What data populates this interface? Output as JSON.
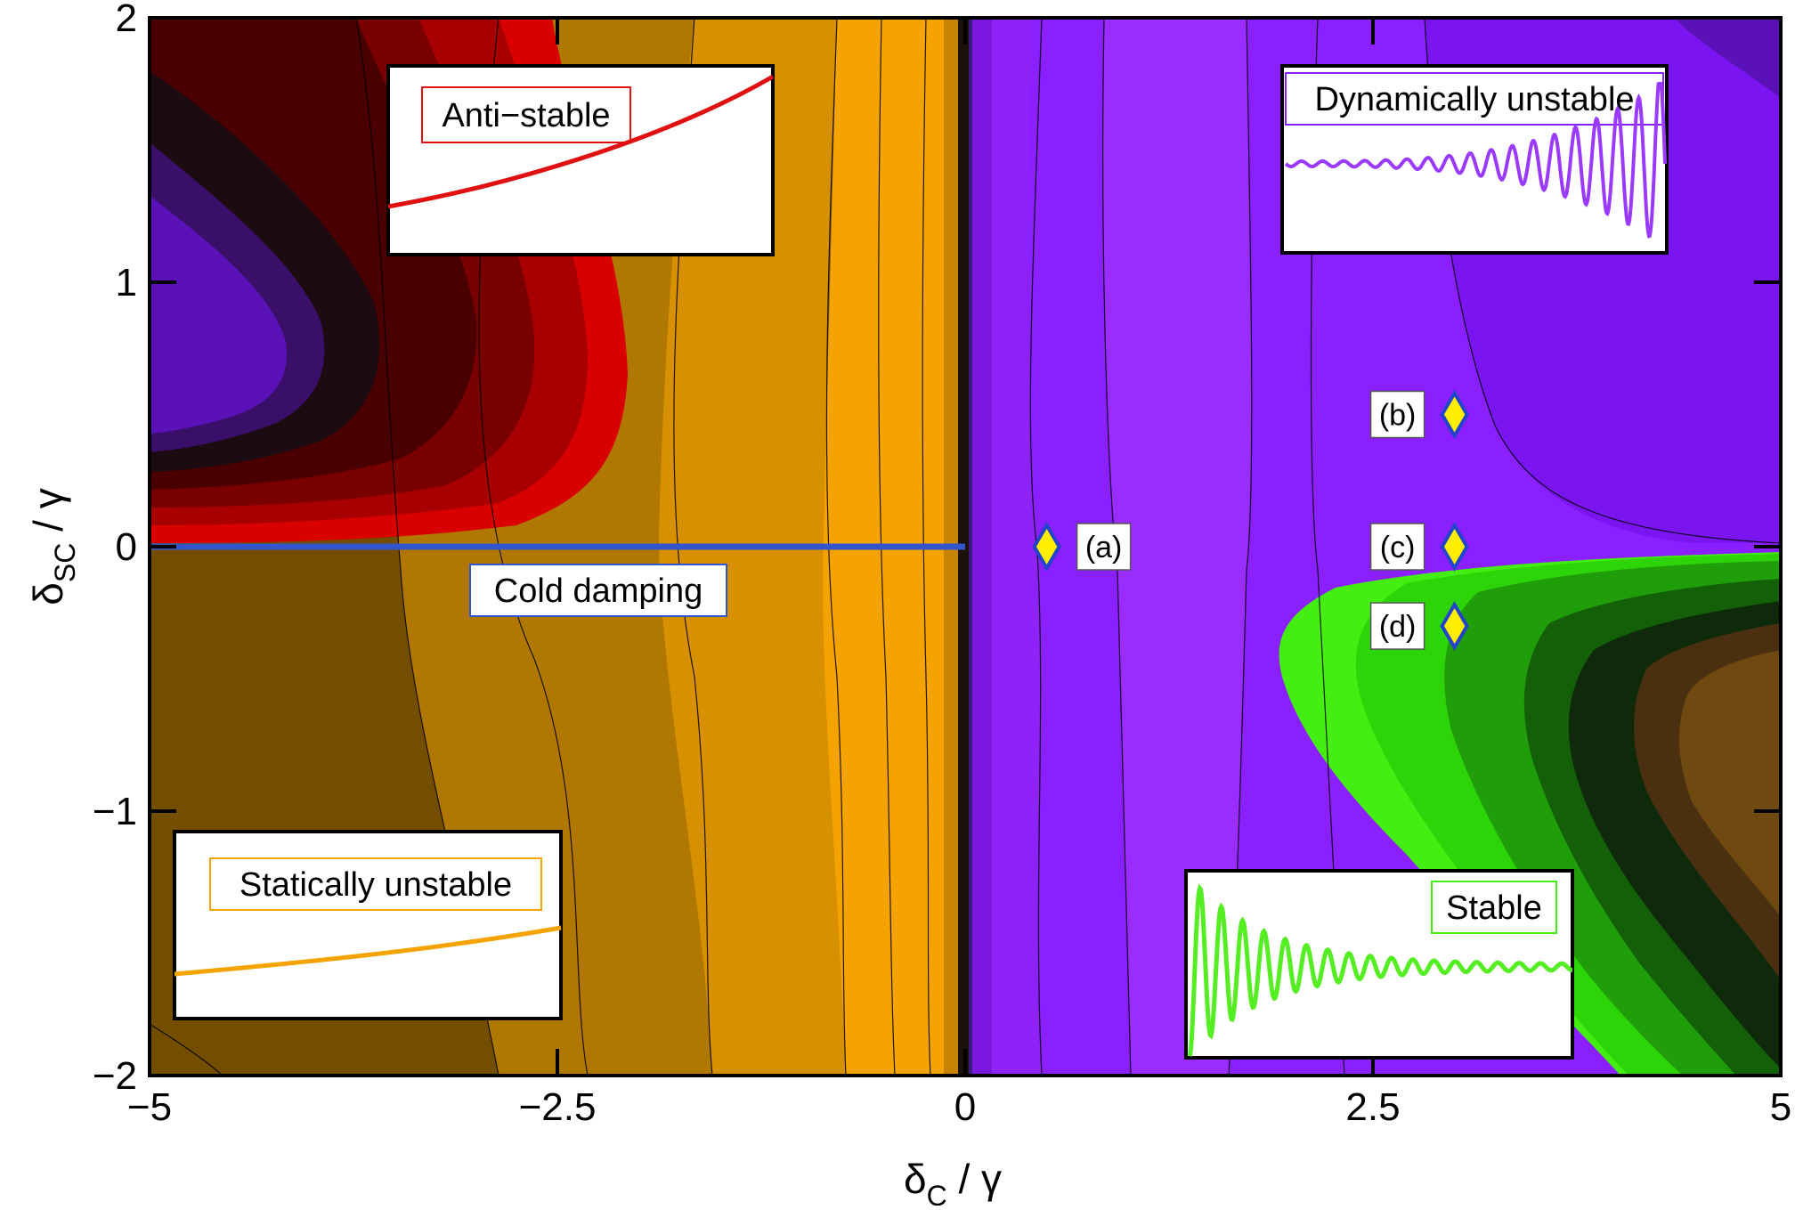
{
  "chart_data": {
    "type": "heatmap",
    "title": "",
    "xlabel": {
      "main": "δ",
      "sub": "C",
      "rest": " / γ"
    },
    "ylabel": {
      "main": "δ",
      "sub": "SC",
      "rest": " / γ"
    },
    "xlim": [
      -5,
      5
    ],
    "ylim": [
      -2,
      2
    ],
    "x_ticks": [
      -5,
      -2.5,
      0,
      2.5,
      5
    ],
    "x_tick_labels": [
      "−5",
      "−2.5",
      "0",
      "2.5",
      "5"
    ],
    "y_ticks": [
      -2,
      -1,
      0,
      1,
      2
    ],
    "y_tick_labels": [
      "−2",
      "−1",
      "0",
      "1",
      "2"
    ],
    "grid": false,
    "regions": [
      {
        "label": "Anti−stable",
        "color": "#d90000"
      },
      {
        "label": "Dynamically unstable",
        "color": "#8a20ff"
      },
      {
        "label": "Statically unstable",
        "color": "#f5a300"
      },
      {
        "label": "Stable",
        "color": "#44ee11"
      }
    ],
    "cold_damping": {
      "label": "Cold damping",
      "x": [
        -5,
        0
      ],
      "y": 0,
      "color": "#3355cc"
    },
    "markers": [
      {
        "label": "(a)",
        "x": 0.5,
        "y": 0.0
      },
      {
        "label": "(b)",
        "x": 3.0,
        "y": 0.5
      },
      {
        "label": "(c)",
        "x": 3.0,
        "y": 0.0
      },
      {
        "label": "(d)",
        "x": 3.0,
        "y": -0.3
      }
    ],
    "colors": {
      "anti_stable": "#d90000",
      "dynamic": "#8a20ff",
      "static": "#f5a300",
      "stable": "#44ee11",
      "marker_fill": "#ffee00",
      "marker_edge": "#2244cc"
    }
  }
}
